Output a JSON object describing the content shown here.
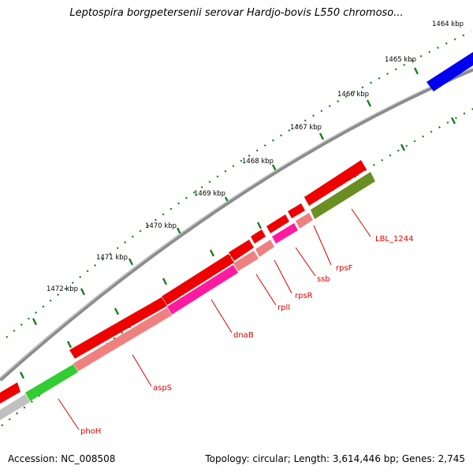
{
  "title": "Leptospira borgpetersenii serovar Hardjo-bovis L550 chromoso...",
  "footer": {
    "accession": "Accession: NC_008508",
    "summary": "Topology: circular; Length: 3,614,446 bp; Genes: 2,745"
  },
  "colors": {
    "backbone": "#808080",
    "forward_gene": "#ff0000",
    "reverse_gene": "#f08080",
    "blue_gene": "#0000ff",
    "olive_gene": "#6b8e23",
    "green_gene": "#32cd32",
    "magenta_gene": "#ff1493",
    "gray_gene": "#c0c0c0",
    "tick": "#006400",
    "label": "#e00000"
  },
  "ticks": [
    {
      "label": "1464 kbp"
    },
    {
      "label": "1465 kbp"
    },
    {
      "label": "1466 kbp"
    },
    {
      "label": "1467 kbp"
    },
    {
      "label": "1468 kbp"
    },
    {
      "label": "1469 kbp"
    },
    {
      "label": "1470 kbp"
    },
    {
      "label": "1471 kbp"
    },
    {
      "label": "1472 kbp"
    }
  ],
  "gene_labels": [
    {
      "name": "LBL_1244"
    },
    {
      "name": "rpsF"
    },
    {
      "name": "ssb"
    },
    {
      "name": "rpsR"
    },
    {
      "name": "rplI"
    },
    {
      "name": "dnaB"
    },
    {
      "name": "aspS"
    },
    {
      "name": "phoH"
    }
  ]
}
